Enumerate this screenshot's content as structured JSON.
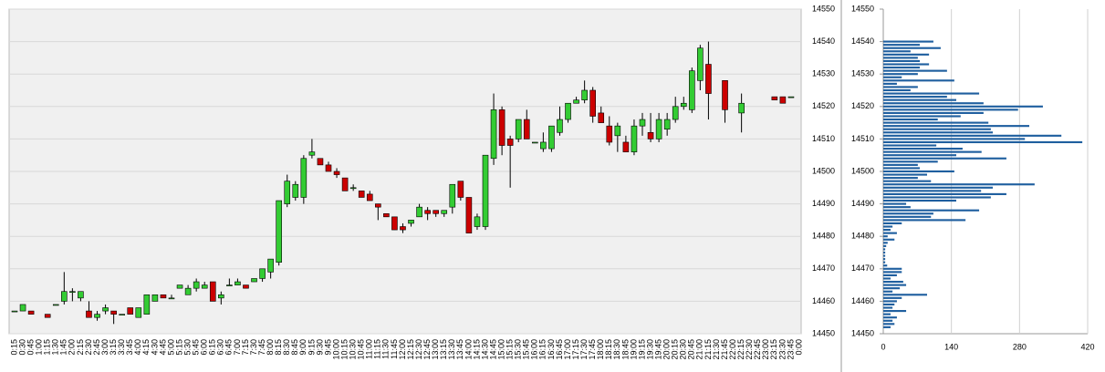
{
  "chart_data": [
    {
      "type": "candlestick",
      "x": [
        "0:15",
        "0:30",
        "0:45",
        "1:00",
        "1:15",
        "1:30",
        "1:45",
        "2:00",
        "2:15",
        "2:30",
        "2:45",
        "3:00",
        "3:15",
        "3:30",
        "3:45",
        "4:00",
        "4:15",
        "4:30",
        "4:45",
        "5:00",
        "5:15",
        "5:30",
        "5:45",
        "6:00",
        "6:15",
        "6:30",
        "6:45",
        "7:00",
        "7:15",
        "7:30",
        "7:45",
        "8:00",
        "8:15",
        "8:30",
        "8:45",
        "9:00",
        "9:15",
        "9:30",
        "9:45",
        "10:00",
        "10:15",
        "10:30",
        "10:45",
        "11:00",
        "11:15",
        "11:30",
        "11:45",
        "12:00",
        "12:15",
        "12:30",
        "12:45",
        "13:00",
        "13:15",
        "13:30",
        "13:45",
        "14:00",
        "14:15",
        "14:30",
        "14:45",
        "15:00",
        "15:15",
        "15:30",
        "15:45",
        "16:00",
        "16:15",
        "16:30",
        "16:45",
        "17:00",
        "17:15",
        "17:30",
        "17:45",
        "18:00",
        "18:15",
        "18:30",
        "18:45",
        "19:00",
        "19:15",
        "19:30",
        "19:45",
        "20:00",
        "20:15",
        "20:30",
        "20:45",
        "21:00",
        "21:15",
        "21:30",
        "21:45",
        "22:00",
        "22:15",
        "22:30",
        "22:45",
        "23:00",
        "23:15",
        "23:30",
        "23:45",
        "0:00"
      ],
      "open": [
        14457,
        14457,
        14457,
        null,
        14456,
        14459,
        14460,
        14463,
        14461,
        14457,
        14455,
        14457,
        14457,
        14456,
        14458,
        14455,
        14456,
        14460,
        14462,
        14461,
        14464,
        14462,
        14464,
        14464,
        14466,
        14461,
        14465,
        14465,
        14465,
        14466,
        14467,
        14469,
        14472,
        14490,
        14492,
        14492,
        14505,
        14504,
        14502,
        14500,
        14498,
        14495,
        14494,
        14493,
        14490,
        14487,
        14486,
        14483,
        14484,
        14486,
        14488,
        14488,
        14487,
        14489,
        14497,
        14492,
        14483,
        14483,
        14504,
        14519,
        14510,
        14510,
        14516,
        14509,
        14507,
        14507,
        14512,
        14516,
        14521,
        14522,
        14525,
        14518,
        14514,
        14511,
        14509,
        14506,
        14514,
        14512,
        14510,
        14513,
        14516,
        14520,
        14519,
        14528,
        14533,
        null,
        14528,
        null,
        14518,
        null,
        null,
        null,
        14523,
        14523,
        14523,
        null
      ],
      "high": [
        14457,
        14459,
        14457,
        null,
        14456,
        14459,
        14469,
        14464,
        14463,
        14460,
        14457,
        14459,
        14457,
        14456,
        14458,
        14458,
        14462,
        14462,
        14462,
        14462,
        14465,
        14465,
        14467,
        14466,
        14466,
        14463,
        14467,
        14467,
        14465,
        14467,
        14470,
        14473,
        14491,
        14499,
        14497,
        14505,
        14510,
        14504,
        14503,
        14501,
        14498,
        14496,
        14494,
        14494,
        14490,
        14487,
        14486,
        14484,
        14485,
        14490,
        14489,
        14488,
        14488,
        14496,
        14497,
        14492,
        14487,
        14505,
        14524,
        14520,
        14511,
        14516,
        14519,
        14509,
        14512,
        14514,
        14520,
        14521,
        14523,
        14528,
        14526,
        14520,
        14517,
        14515,
        14511,
        14516,
        14518,
        14518,
        14518,
        14518,
        14523,
        14523,
        14532,
        14539,
        14540,
        null,
        14528,
        null,
        14524,
        null,
        null,
        null,
        14523,
        14523,
        14523,
        null
      ],
      "low": [
        14457,
        14457,
        14456,
        null,
        14455,
        14459,
        14459,
        14460,
        14460,
        14455,
        14454,
        14456,
        14453,
        14456,
        14456,
        14455,
        14456,
        14460,
        14461,
        14461,
        14464,
        14462,
        14463,
        14464,
        14460,
        14459,
        14465,
        14465,
        14464,
        14466,
        14466,
        14467,
        14471,
        14489,
        14491,
        14490,
        14504,
        14502,
        14500,
        14498,
        14494,
        14494,
        14492,
        14491,
        14485,
        14486,
        14482,
        14481,
        14483,
        14486,
        14485,
        14486,
        14486,
        14487,
        14491,
        14481,
        14482,
        14482,
        14502,
        14505,
        14495,
        14509,
        14510,
        14509,
        14506,
        14506,
        14511,
        14515,
        14521,
        14521,
        14515,
        14515,
        14508,
        14506,
        14506,
        14505,
        14511,
        14509,
        14509,
        14511,
        14515,
        14519,
        14518,
        14525,
        14516,
        null,
        14515,
        null,
        14512,
        null,
        null,
        null,
        14522,
        14521,
        14523,
        null
      ],
      "close": [
        14457,
        14459,
        14456,
        null,
        14455,
        14459,
        14463,
        14463,
        14463,
        14455,
        14456,
        14458,
        14456,
        14456,
        14456,
        14458,
        14462,
        14462,
        14461,
        14461,
        14465,
        14464,
        14466,
        14465,
        14460,
        14462,
        14465,
        14466,
        14464,
        14467,
        14470,
        14473,
        14491,
        14497,
        14496,
        14504,
        14506,
        14502,
        14500,
        14499,
        14494,
        14495,
        14492,
        14491,
        14489,
        14486,
        14482,
        14482,
        14485,
        14489,
        14487,
        14487,
        14488,
        14496,
        14492,
        14481,
        14486,
        14505,
        14519,
        14508,
        14508,
        14516,
        14510,
        14509,
        14509,
        14514,
        14516,
        14521,
        14522,
        14525,
        14517,
        14515,
        14509,
        14514,
        14506,
        14514,
        14516,
        14510,
        14516,
        14516,
        14520,
        14521,
        14531,
        14538,
        14524,
        null,
        14519,
        null,
        14521,
        null,
        null,
        null,
        14522,
        14521,
        14523,
        null
      ],
      "up_color": "#33cc33",
      "down_color": "#cc0000",
      "ylim": [
        14450,
        14550
      ],
      "yticks": [
        14450,
        14460,
        14470,
        14480,
        14490,
        14500,
        14510,
        14520,
        14530,
        14540,
        14550
      ],
      "grid": true
    },
    {
      "type": "bar",
      "orientation": "horizontal",
      "color": "#1f5f9f",
      "y": [
        14540,
        14539,
        14538,
        14537,
        14536,
        14535,
        14534,
        14533,
        14532,
        14531,
        14530,
        14529,
        14528,
        14527,
        14526,
        14525,
        14524,
        14523,
        14522,
        14521,
        14520,
        14519,
        14518,
        14517,
        14516,
        14515,
        14514,
        14513,
        14512,
        14511,
        14510,
        14509,
        14508,
        14507,
        14506,
        14505,
        14504,
        14503,
        14502,
        14501,
        14500,
        14499,
        14498,
        14497,
        14496,
        14495,
        14494,
        14493,
        14492,
        14491,
        14490,
        14489,
        14488,
        14487,
        14486,
        14485,
        14484,
        14483,
        14482,
        14481,
        14480,
        14479,
        14478,
        14477,
        14476,
        14475,
        14474,
        14473,
        14472,
        14471,
        14470,
        14469,
        14468,
        14467,
        14466,
        14465,
        14464,
        14463,
        14462,
        14461,
        14460,
        14459,
        14458,
        14457,
        14456,
        14455,
        14454,
        14453,
        14452
      ],
      "values": [
        103,
        75,
        118,
        56,
        94,
        71,
        75,
        94,
        75,
        131,
        71,
        38,
        146,
        28,
        71,
        56,
        197,
        131,
        150,
        206,
        328,
        277,
        206,
        159,
        112,
        216,
        300,
        221,
        225,
        366,
        291,
        409,
        109,
        163,
        202,
        150,
        253,
        112,
        71,
        75,
        146,
        90,
        71,
        98,
        311,
        225,
        201,
        253,
        221,
        150,
        47,
        56,
        197,
        103,
        98,
        169,
        38,
        19,
        15,
        28,
        9,
        23,
        9,
        6,
        4,
        4,
        4,
        4,
        4,
        8,
        38,
        38,
        28,
        15,
        41,
        47,
        34,
        19,
        90,
        38,
        28,
        23,
        19,
        47,
        15,
        28,
        19,
        23,
        15
      ],
      "ylim": [
        14450,
        14550
      ],
      "yticks": [
        14450,
        14460,
        14470,
        14480,
        14490,
        14500,
        14510,
        14520,
        14530,
        14540,
        14550
      ],
      "xlim": [
        0,
        420
      ],
      "xticks": [
        0,
        140,
        280,
        420
      ],
      "grid": true
    }
  ]
}
